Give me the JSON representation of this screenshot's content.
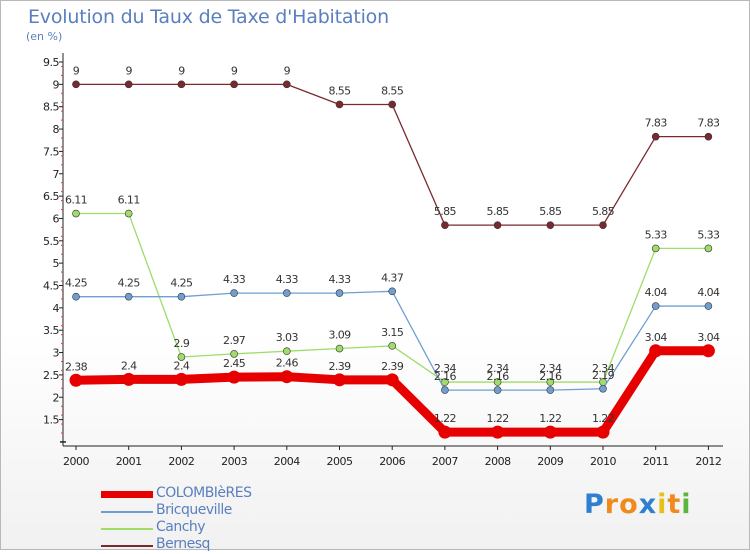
{
  "title": "Evolution du Taux de Taxe d'Habitation",
  "subtitle": "(en %)",
  "brand": "Proxiti",
  "chart_data": {
    "type": "line",
    "title": "Evolution du Taux de Taxe d'Habitation",
    "subtitle": "(en %)",
    "x": [
      "2000",
      "2001",
      "2002",
      "2003",
      "2004",
      "2005",
      "2006",
      "2007",
      "2008",
      "2009",
      "2010",
      "2011",
      "2012"
    ],
    "ylim": [
      1,
      9.5
    ],
    "yticks": [
      1.5,
      2,
      2.5,
      3,
      3.5,
      4,
      4.5,
      5,
      5.5,
      6,
      6.5,
      7,
      7.5,
      8,
      8.5,
      9,
      9.5
    ],
    "legend_position": "bottom-left",
    "grid": false,
    "series": [
      {
        "name": "COLOMBIèRES",
        "color": "#e60000",
        "values": [
          2.38,
          2.4,
          2.4,
          2.45,
          2.46,
          2.39,
          2.39,
          1.22,
          1.22,
          1.22,
          1.22,
          3.04,
          3.04
        ],
        "labels": [
          "2.38",
          "2.4",
          "2.4",
          "2.45",
          "2.46",
          "2.39",
          "2.39",
          "1.22",
          "1.22",
          "1.22",
          "1.22",
          "3.04",
          "3.04"
        ]
      },
      {
        "name": "Bricqueville",
        "color": "#6f9fd0",
        "values": [
          4.25,
          4.25,
          4.25,
          4.33,
          4.33,
          4.33,
          4.37,
          2.16,
          2.16,
          2.16,
          2.19,
          4.04,
          4.04
        ],
        "labels": [
          "4.25",
          "4.25",
          "4.25",
          "4.33",
          "4.33",
          "4.33",
          "4.37",
          "2.16",
          "2.16",
          "2.16",
          "2.19",
          "4.04",
          "4.04"
        ]
      },
      {
        "name": "Canchy",
        "color": "#9fdc6a",
        "values": [
          6.11,
          6.11,
          2.9,
          2.97,
          3.03,
          3.09,
          3.15,
          2.34,
          2.34,
          2.34,
          2.34,
          5.33,
          5.33
        ],
        "labels": [
          "6.11",
          "6.11",
          "2.9",
          "2.97",
          "3.03",
          "3.09",
          "3.15",
          "2.34",
          "2.34",
          "2.34",
          "2.34",
          "5.33",
          "5.33"
        ]
      },
      {
        "name": "Bernesq",
        "color": "#7a2a2f",
        "values": [
          9,
          9,
          9,
          9,
          9,
          8.55,
          8.55,
          5.85,
          5.85,
          5.85,
          5.85,
          7.83,
          7.83
        ],
        "labels": [
          "9",
          "9",
          "9",
          "9",
          "9",
          "8.55",
          "8.55",
          "5.85",
          "5.85",
          "5.85",
          "5.85",
          "7.83",
          "7.83"
        ]
      }
    ]
  }
}
